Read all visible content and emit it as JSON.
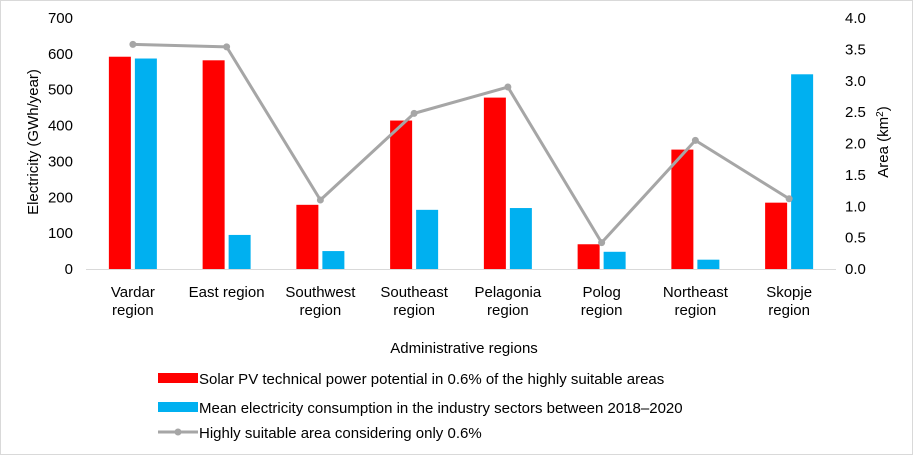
{
  "chart_data": {
    "type": "bar",
    "categories": [
      [
        "Vardar",
        "region"
      ],
      [
        "East region"
      ],
      [
        "Southwest",
        "region"
      ],
      [
        "Southeast",
        "region"
      ],
      [
        "Pelagonia",
        "region"
      ],
      [
        "Polog",
        "region"
      ],
      [
        "Northeast",
        "region"
      ],
      [
        "Skopje",
        "region"
      ]
    ],
    "series": [
      {
        "name": "Solar PV technical power potential in 0.6% of the highly suitable areas",
        "type": "bar",
        "axis": "left",
        "color": "#ff0000",
        "values": [
          592,
          582,
          179,
          414,
          478,
          69,
          333,
          185
        ]
      },
      {
        "name": "Mean electricity consumption in the industry sectors between 2018–2020",
        "type": "bar",
        "axis": "left",
        "color": "#00b0f0",
        "values": [
          587,
          95,
          50,
          165,
          170,
          48,
          26,
          543
        ]
      },
      {
        "name": "Highly suitable area considering only 0.6%",
        "type": "line",
        "axis": "right",
        "color": "#a6a6a6",
        "values": [
          3.58,
          3.54,
          1.1,
          2.48,
          2.9,
          0.42,
          2.05,
          1.12
        ]
      }
    ],
    "xlabel": "Administrative regions",
    "ylabel": "Electricity (GWh/year)",
    "y2label_main": "Area (km",
    "y2label_sup": "2",
    "y2label_close": ")",
    "ylim": [
      0,
      700
    ],
    "y2lim": [
      0,
      4
    ],
    "yticks": [
      "0",
      "100",
      "200",
      "300",
      "400",
      "500",
      "600",
      "700"
    ],
    "y2ticks": [
      "0.0",
      "0.5",
      "1.0",
      "1.5",
      "2.0",
      "2.5",
      "3.0",
      "3.5",
      "4.0"
    ],
    "grid": false,
    "legend_position": "bottom"
  }
}
